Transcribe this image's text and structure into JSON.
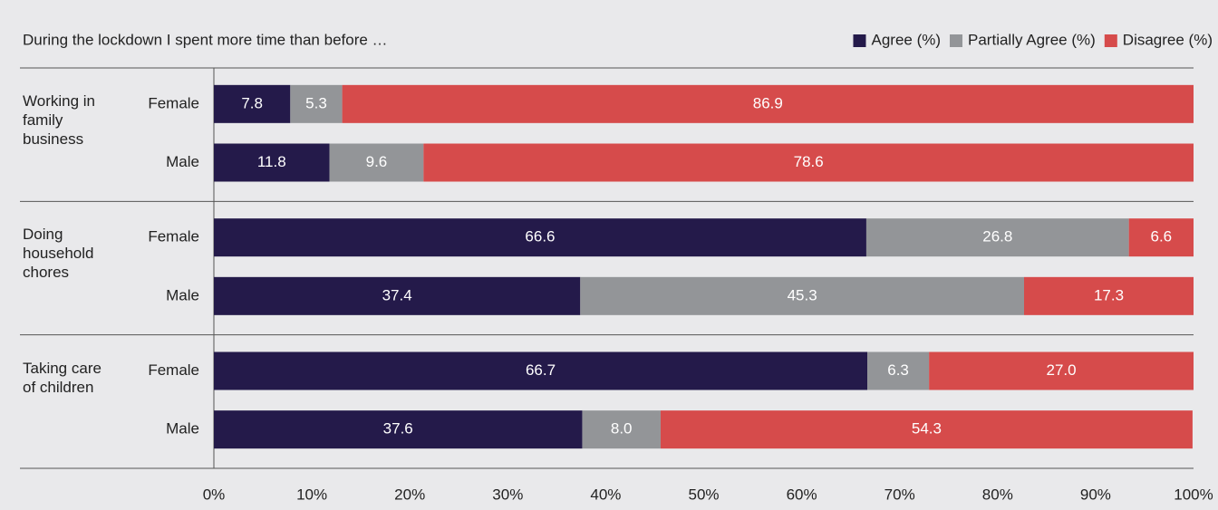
{
  "chart_data": {
    "type": "stacked-barh",
    "title": "During the lockdown I spent more time than before …",
    "groups": [
      "Working in family business",
      "Doing household chores",
      "Taking care of children"
    ],
    "categories": [
      "Female",
      "Male",
      "Female",
      "Male",
      "Female",
      "Male"
    ],
    "series": [
      {
        "name": "Agree (%)",
        "color": "#241a4a",
        "values": [
          7.8,
          11.8,
          66.6,
          37.4,
          66.7,
          37.6
        ]
      },
      {
        "name": "Partially Agree (%)",
        "color": "#939598",
        "values": [
          5.3,
          9.6,
          26.8,
          45.3,
          6.3,
          8.0
        ],
        "value_labels": [
          "5.3",
          "9.6",
          "26.8",
          "45.3",
          "6.3",
          "8.0"
        ]
      },
      {
        "name": "Disagree (%)",
        "color": "#d64b4b",
        "values": [
          86.9,
          78.6,
          6.6,
          17.3,
          27.0,
          54.3
        ],
        "value_labels": [
          "86.9",
          "78.6",
          "6.6",
          "17.3",
          "27.0",
          "54.3"
        ]
      }
    ],
    "xlim": [
      0,
      100
    ],
    "xticks": [
      {
        "value": 0,
        "label": "0%"
      },
      {
        "value": 10,
        "label": "10%"
      },
      {
        "value": 20,
        "label": "20%"
      },
      {
        "value": 30,
        "label": "30%"
      },
      {
        "value": 40,
        "label": "40%"
      },
      {
        "value": 50,
        "label": "50%"
      },
      {
        "value": 60,
        "label": "60%"
      },
      {
        "value": 70,
        "label": "70%"
      },
      {
        "value": 80,
        "label": "80%"
      },
      {
        "value": 90,
        "label": "90%"
      },
      {
        "value": 100,
        "label": "100%"
      }
    ],
    "legend": "top-right"
  }
}
